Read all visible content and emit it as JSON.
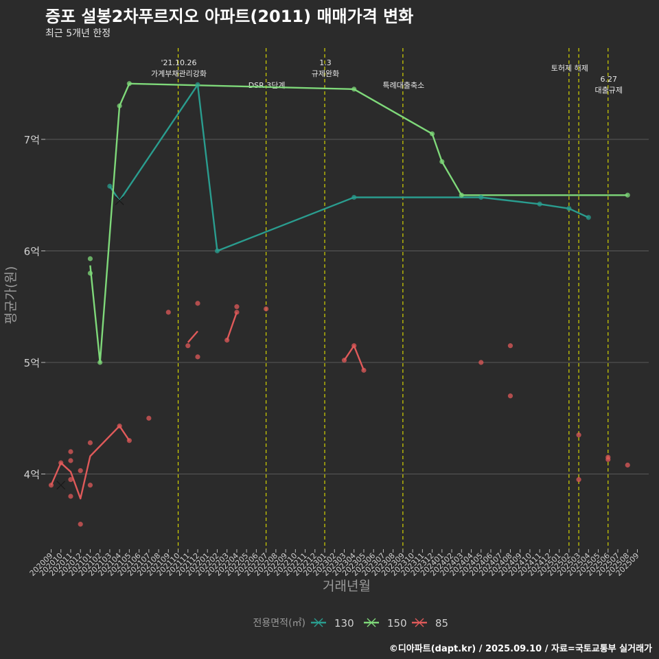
{
  "header": {
    "title": "증포 설봉2차푸르지오 아파트(2011) 매매가격 변화",
    "subtitle": "최근 5개년 한정"
  },
  "caption": "©디아파트(dapt.kr) / 2025.09.10 / 자료=국토교통부 실거래가",
  "colors": {
    "background": "#2b2b2b",
    "grid": "#5a5a5a",
    "event_line": "#d4d400",
    "s130": "#2a9d8f",
    "s150": "#7fd97a",
    "s85": "#e05a5a"
  },
  "chart_data": {
    "type": "line",
    "xlabel": "거래년월",
    "ylabel": "평균가(원)",
    "ylim": [
      3.4,
      7.95
    ],
    "yticks": [
      4,
      5,
      6,
      7
    ],
    "ytick_labels": [
      "4억",
      "5억",
      "6억",
      "7억"
    ],
    "x_categories": [
      "202009",
      "202010",
      "202011",
      "202012",
      "202101",
      "202102",
      "202103",
      "202104",
      "202105",
      "202106",
      "202107",
      "202108",
      "202109",
      "202110",
      "202111",
      "202112",
      "202201",
      "202202",
      "202203",
      "202204",
      "202205",
      "202206",
      "202207",
      "202208",
      "202209",
      "202210",
      "202211",
      "202212",
      "202301",
      "202302",
      "202303",
      "202304",
      "202305",
      "202306",
      "202307",
      "202308",
      "202309",
      "202310",
      "202311",
      "202312",
      "202401",
      "202402",
      "202403",
      "202404",
      "202405",
      "202406",
      "202407",
      "202408",
      "202409",
      "202410",
      "202411",
      "202412",
      "202501",
      "202502",
      "202503",
      "202504",
      "202505",
      "202506",
      "202507",
      "202508",
      "202509"
    ],
    "legend": {
      "title": "전용면적(㎡)",
      "entries": [
        {
          "key": "s130",
          "label": "130"
        },
        {
          "key": "s150",
          "label": "150"
        },
        {
          "key": "s85",
          "label": "85"
        }
      ],
      "position": "bottom"
    },
    "events": [
      {
        "month": "202110",
        "label": "'21.10.26\n가계부채관리강화"
      },
      {
        "month": "202207",
        "label": "DSR 3단계"
      },
      {
        "month": "202301",
        "label": "1.3\n규제완화"
      },
      {
        "month": "202309",
        "label": "특례대출축소"
      },
      {
        "month": "202502",
        "label": "토허제 해제"
      },
      {
        "month": "202503",
        "label": ""
      },
      {
        "month": "202506",
        "label": "6.27\n대출규제"
      }
    ],
    "series": [
      {
        "key": "s130",
        "name": "130",
        "segments": [
          [
            [
              "202103",
              6.58
            ],
            [
              "202104",
              6.45
            ],
            [
              "202112",
              7.49
            ],
            [
              "202202",
              6.0
            ],
            [
              "202304",
              6.48
            ],
            [
              "202405",
              6.48
            ],
            [
              "202411",
              6.42
            ],
            [
              "202502",
              6.38
            ],
            [
              "202504",
              6.3
            ]
          ]
        ],
        "points": [
          [
            "202103",
            6.58
          ],
          [
            "202112",
            7.49
          ],
          [
            "202202",
            6.0
          ],
          [
            "202304",
            6.48
          ],
          [
            "202405",
            6.48
          ],
          [
            "202411",
            6.42
          ],
          [
            "202502",
            6.38
          ],
          [
            "202504",
            6.3
          ]
        ],
        "cross_markers": [
          [
            "202104",
            6.45
          ]
        ]
      },
      {
        "key": "s150",
        "name": "150",
        "segments": [
          [
            [
              "202101",
              5.87
            ],
            [
              "202102",
              5.0
            ],
            [
              "202104",
              7.3
            ],
            [
              "202105",
              7.5
            ],
            [
              "202304",
              7.45
            ],
            [
              "202312",
              7.05
            ],
            [
              "202401",
              6.8
            ],
            [
              "202403",
              6.5
            ],
            [
              "202508",
              6.5
            ]
          ]
        ],
        "points": [
          [
            "202101",
            5.93
          ],
          [
            "202101",
            5.8
          ],
          [
            "202102",
            5.0
          ],
          [
            "202104",
            7.3
          ],
          [
            "202105",
            7.5
          ],
          [
            "202304",
            7.45
          ],
          [
            "202312",
            7.05
          ],
          [
            "202401",
            6.8
          ],
          [
            "202403",
            6.5
          ],
          [
            "202508",
            6.5
          ]
        ],
        "cross_markers": []
      },
      {
        "key": "s85",
        "name": "85",
        "segments": [
          [
            [
              "202009",
              3.9
            ],
            [
              "202010",
              4.1
            ],
            [
              "202011",
              4.02
            ],
            [
              "202012",
              3.78
            ],
            [
              "202101",
              4.16
            ],
            [
              "202104",
              4.43
            ],
            [
              "202105",
              4.3
            ]
          ],
          [
            [
              "202111",
              5.18
            ],
            [
              "202112",
              5.28
            ]
          ],
          [
            [
              "202203",
              5.2
            ],
            [
              "202204",
              5.45
            ]
          ],
          [
            [
              "202303",
              5.02
            ],
            [
              "202304",
              5.15
            ],
            [
              "202305",
              4.93
            ]
          ]
        ],
        "points": [
          [
            "202009",
            3.9
          ],
          [
            "202010",
            4.1
          ],
          [
            "202011",
            4.2
          ],
          [
            "202011",
            4.12
          ],
          [
            "202011",
            3.95
          ],
          [
            "202011",
            3.8
          ],
          [
            "202012",
            4.03
          ],
          [
            "202012",
            3.55
          ],
          [
            "202101",
            4.28
          ],
          [
            "202101",
            3.9
          ],
          [
            "202104",
            4.43
          ],
          [
            "202105",
            4.3
          ],
          [
            "202107",
            4.5
          ],
          [
            "202109",
            5.45
          ],
          [
            "202111",
            5.15
          ],
          [
            "202112",
            5.53
          ],
          [
            "202112",
            5.05
          ],
          [
            "202203",
            5.2
          ],
          [
            "202204",
            5.5
          ],
          [
            "202204",
            5.45
          ],
          [
            "202207",
            5.48
          ],
          [
            "202303",
            5.02
          ],
          [
            "202304",
            5.15
          ],
          [
            "202305",
            4.93
          ],
          [
            "202405",
            5.0
          ],
          [
            "202408",
            5.15
          ],
          [
            "202408",
            4.7
          ],
          [
            "202503",
            4.35
          ],
          [
            "202503",
            3.95
          ],
          [
            "202506",
            4.15
          ],
          [
            "202506",
            4.13
          ],
          [
            "202508",
            4.08
          ]
        ],
        "cross_markers": [
          [
            "202010",
            3.9
          ]
        ]
      }
    ]
  }
}
